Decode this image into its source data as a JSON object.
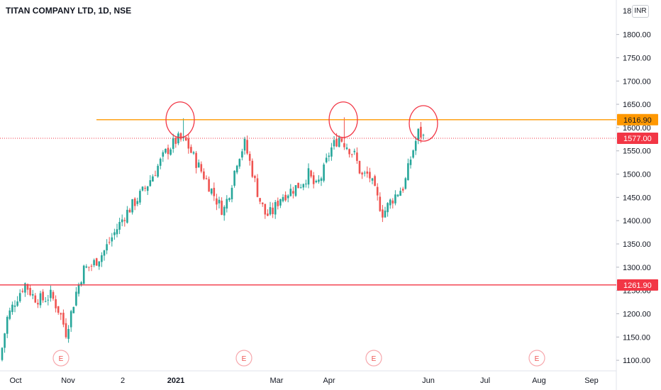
{
  "header": {
    "title": "TITAN COMPANY LTD, 1D, NSE",
    "currency_label": "INR"
  },
  "colors": {
    "up": "#26a69a",
    "down": "#ef5350",
    "resistance": "#ff9800",
    "support": "#f23645",
    "last": "#f23645",
    "annotation": "#f23645"
  },
  "chart_data": {
    "type": "candlestick",
    "title": "TITAN COMPANY LTD, 1D, NSE",
    "currency": "INR",
    "y_ticks": [
      "1800.00",
      "1750.00",
      "1700.00",
      "1650.00",
      "1600.00",
      "1550.00",
      "1500.00",
      "1450.00",
      "1400.00",
      "1350.00",
      "1300.00",
      "1250.00",
      "1200.00",
      "1150.00",
      "1100.00"
    ],
    "y_top_partial": "18",
    "x_ticks": [
      "Oct",
      "Nov",
      "2",
      "2021",
      "Mar",
      "Apr",
      "Jun",
      "Jul",
      "Aug",
      "Sep"
    ],
    "horizontal_levels": [
      {
        "label": "1616.90",
        "value": 1616.9,
        "role": "resistance"
      },
      {
        "label": "1261.90",
        "value": 1261.9,
        "role": "support"
      }
    ],
    "last_price": {
      "label": "1577.00",
      "value": 1577.0
    },
    "earnings_markers": [
      "E",
      "E",
      "E",
      "E"
    ],
    "circled_peaks": [
      1620,
      1620,
      1612
    ],
    "close_path": [
      [
        0,
        1100
      ],
      [
        10,
        1190
      ],
      [
        22,
        1230
      ],
      [
        35,
        1265
      ],
      [
        48,
        1235
      ],
      [
        60,
        1230
      ],
      [
        72,
        1240
      ],
      [
        85,
        1200
      ],
      [
        93,
        1160
      ],
      [
        100,
        1200
      ],
      [
        108,
        1250
      ],
      [
        118,
        1295
      ],
      [
        130,
        1305
      ],
      [
        145,
        1330
      ],
      [
        160,
        1370
      ],
      [
        175,
        1410
      ],
      [
        190,
        1440
      ],
      [
        205,
        1470
      ],
      [
        220,
        1510
      ],
      [
        235,
        1550
      ],
      [
        250,
        1575
      ],
      [
        262,
        1570
      ],
      [
        275,
        1530
      ],
      [
        290,
        1490
      ],
      [
        305,
        1445
      ],
      [
        315,
        1420
      ],
      [
        325,
        1470
      ],
      [
        335,
        1535
      ],
      [
        345,
        1565
      ],
      [
        355,
        1510
      ],
      [
        365,
        1450
      ],
      [
        375,
        1410
      ],
      [
        385,
        1420
      ],
      [
        395,
        1450
      ],
      [
        410,
        1465
      ],
      [
        425,
        1480
      ],
      [
        435,
        1500
      ],
      [
        445,
        1470
      ],
      [
        455,
        1500
      ],
      [
        465,
        1550
      ],
      [
        478,
        1580
      ],
      [
        490,
        1560
      ],
      [
        500,
        1540
      ],
      [
        510,
        1495
      ],
      [
        520,
        1500
      ],
      [
        530,
        1455
      ],
      [
        540,
        1415
      ],
      [
        550,
        1440
      ],
      [
        560,
        1460
      ],
      [
        570,
        1475
      ],
      [
        580,
        1540
      ],
      [
        590,
        1590
      ],
      [
        600,
        1575
      ]
    ]
  }
}
